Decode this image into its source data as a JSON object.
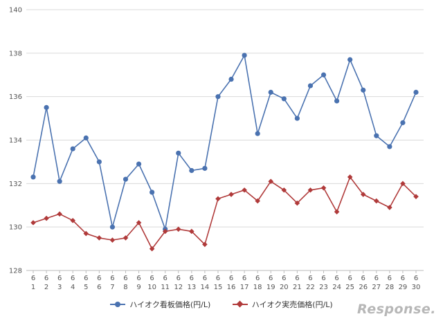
{
  "chart_data": {
    "type": "line",
    "title": "",
    "xlabel": "",
    "ylabel": "",
    "ylim": [
      128,
      140
    ],
    "yticks": [
      128,
      130,
      132,
      134,
      136,
      138,
      140
    ],
    "grid": true,
    "legend": "bottom",
    "categories": [
      {
        "m": "6",
        "d": "1"
      },
      {
        "m": "6",
        "d": "2"
      },
      {
        "m": "6",
        "d": "3"
      },
      {
        "m": "6",
        "d": "4"
      },
      {
        "m": "6",
        "d": "5"
      },
      {
        "m": "6",
        "d": "6"
      },
      {
        "m": "6",
        "d": "7"
      },
      {
        "m": "6",
        "d": "8"
      },
      {
        "m": "6",
        "d": "9"
      },
      {
        "m": "6",
        "d": "10"
      },
      {
        "m": "6",
        "d": "11"
      },
      {
        "m": "6",
        "d": "12"
      },
      {
        "m": "6",
        "d": "13"
      },
      {
        "m": "6",
        "d": "14"
      },
      {
        "m": "6",
        "d": "15"
      },
      {
        "m": "6",
        "d": "16"
      },
      {
        "m": "6",
        "d": "17"
      },
      {
        "m": "6",
        "d": "18"
      },
      {
        "m": "6",
        "d": "19"
      },
      {
        "m": "6",
        "d": "20"
      },
      {
        "m": "6",
        "d": "21"
      },
      {
        "m": "6",
        "d": "22"
      },
      {
        "m": "6",
        "d": "23"
      },
      {
        "m": "6",
        "d": "24"
      },
      {
        "m": "6",
        "d": "25"
      },
      {
        "m": "6",
        "d": "26"
      },
      {
        "m": "6",
        "d": "27"
      },
      {
        "m": "6",
        "d": "28"
      },
      {
        "m": "6",
        "d": "29"
      },
      {
        "m": "6",
        "d": "30"
      }
    ],
    "series": [
      {
        "name": "ハイオク看板価格(円/L)",
        "color": "#4a72b0",
        "marker": "circle",
        "values": [
          132.3,
          135.5,
          132.1,
          133.6,
          134.1,
          133.0,
          130.0,
          132.2,
          132.9,
          131.6,
          129.9,
          133.4,
          132.6,
          132.7,
          136.0,
          136.8,
          137.9,
          134.3,
          136.2,
          135.9,
          135.0,
          136.5,
          137.0,
          135.8,
          137.7,
          136.3,
          134.2,
          133.7,
          134.8,
          136.2
        ]
      },
      {
        "name": "ハイオク実売価格(円/L)",
        "color": "#b03a3a",
        "marker": "diamond",
        "values": [
          130.2,
          130.4,
          130.6,
          130.3,
          129.7,
          129.5,
          129.4,
          129.5,
          130.2,
          129.0,
          129.8,
          129.9,
          129.8,
          129.2,
          131.3,
          131.5,
          131.7,
          131.2,
          132.1,
          131.7,
          131.1,
          131.7,
          131.8,
          130.7,
          132.3,
          131.5,
          131.2,
          130.9,
          132.0,
          131.4
        ]
      }
    ]
  },
  "watermark": "Response."
}
